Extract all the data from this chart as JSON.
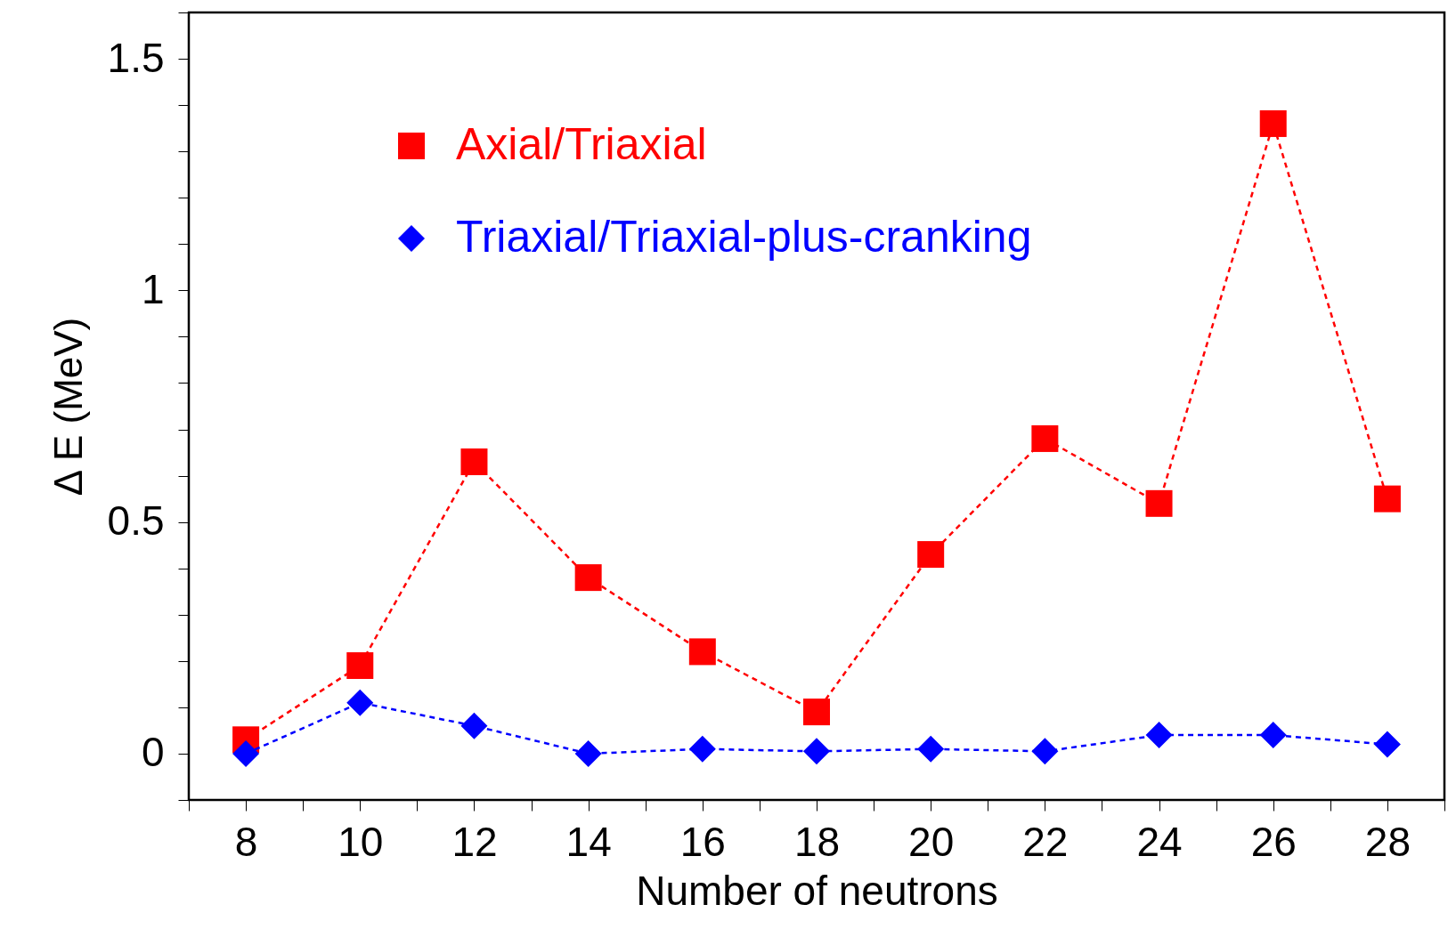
{
  "chart_data": {
    "type": "line",
    "xlabel": "Number of neutrons",
    "ylabel": "Δ E (MeV)",
    "x": [
      8,
      10,
      12,
      14,
      16,
      18,
      20,
      22,
      24,
      26,
      28
    ],
    "series": [
      {
        "name": "Axial/Triaxial",
        "color": "#ff0000",
        "marker": "square",
        "values": [
          0.03,
          0.19,
          0.63,
          0.38,
          0.22,
          0.09,
          0.43,
          0.68,
          0.54,
          1.36,
          0.55
        ]
      },
      {
        "name": "Triaxial/Triaxial-plus-cranking",
        "color": "#0000ff",
        "marker": "diamond",
        "values": [
          0.0,
          0.11,
          0.06,
          0.0,
          0.01,
          0.005,
          0.01,
          0.005,
          0.04,
          0.04,
          0.02
        ]
      }
    ],
    "line_style": "dashed",
    "xlim": [
      7,
      29
    ],
    "ylim": [
      -0.1,
      1.6
    ],
    "xticks": [
      8,
      10,
      12,
      14,
      16,
      18,
      20,
      22,
      24,
      26,
      28
    ],
    "yticks": [
      0,
      0.5,
      1,
      1.5
    ],
    "grid": false,
    "legend": "top left"
  }
}
